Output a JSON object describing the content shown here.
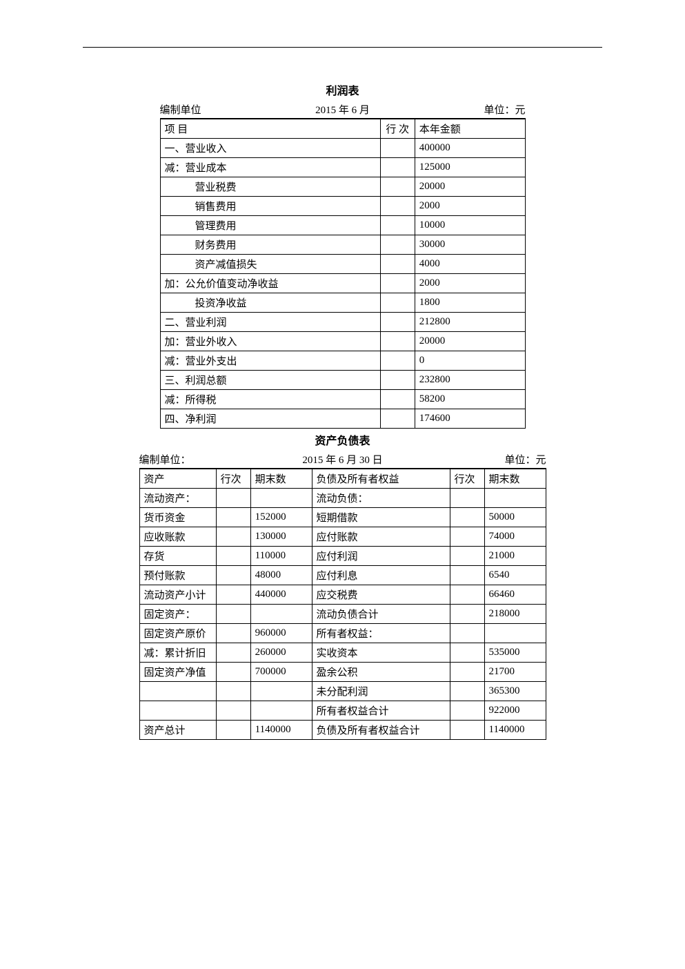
{
  "page": {
    "background_color": "#ffffff",
    "text_color": "#000000",
    "border_color": "#000000",
    "font_size": 15,
    "title_font_size": 16
  },
  "income_statement": {
    "title": "利润表",
    "meta": {
      "left": "编制单位",
      "center": "2015 年 6 月",
      "right": "单位：元"
    },
    "columns": [
      "项 目",
      "行 次",
      "本年金额"
    ],
    "rows": [
      {
        "label": "一、营业收入",
        "indent": 0,
        "line": "",
        "amount": "400000"
      },
      {
        "label": "减：营业成本",
        "indent": 0,
        "line": "",
        "amount": "125000"
      },
      {
        "label": "营业税费",
        "indent": 2,
        "line": "",
        "amount": "20000"
      },
      {
        "label": "销售费用",
        "indent": 2,
        "line": "",
        "amount": "2000"
      },
      {
        "label": "管理费用",
        "indent": 2,
        "line": "",
        "amount": "10000"
      },
      {
        "label": "财务费用",
        "indent": 2,
        "line": "",
        "amount": "30000"
      },
      {
        "label": "资产减值损失",
        "indent": 2,
        "line": "",
        "amount": "4000"
      },
      {
        "label": "加：公允价值变动净收益",
        "indent": 0,
        "line": "",
        "amount": "2000"
      },
      {
        "label": "投资净收益",
        "indent": 2,
        "line": "",
        "amount": "1800"
      },
      {
        "label": "二、营业利润",
        "indent": 0,
        "line": "",
        "amount": "212800"
      },
      {
        "label": "加：营业外收入",
        "indent": 0,
        "line": "",
        "amount": "20000"
      },
      {
        "label": "减：营业外支出",
        "indent": 0,
        "line": "",
        "amount": "0"
      },
      {
        "label": "三、利润总额",
        "indent": 0,
        "line": "",
        "amount": "232800"
      },
      {
        "label": "减：所得税",
        "indent": 0,
        "line": "",
        "amount": "58200"
      },
      {
        "label": "四、净利润",
        "indent": 0,
        "line": "",
        "amount": "174600"
      }
    ]
  },
  "balance_sheet": {
    "title": "资产负债表",
    "meta": {
      "left": "编制单位：",
      "center": "2015 年 6 月 30 日",
      "right": "单位：元"
    },
    "columns": [
      "资产",
      "行次",
      "期末数",
      "负债及所有者权益",
      "行次",
      "期末数"
    ],
    "rows": [
      {
        "asset": "流动资产：",
        "aline": "",
        "aend": "",
        "liab": "流动负债：",
        "lline": "",
        "lend": ""
      },
      {
        "asset": "货币资金",
        "aline": "",
        "aend": "152000",
        "liab": "短期借款",
        "lline": "",
        "lend": "50000"
      },
      {
        "asset": "应收账款",
        "aline": "",
        "aend": "130000",
        "liab": "应付账款",
        "lline": "",
        "lend": "74000"
      },
      {
        "asset": "存货",
        "aline": "",
        "aend": "110000",
        "liab": "应付利润",
        "lline": "",
        "lend": "21000"
      },
      {
        "asset": "预付账款",
        "aline": "",
        "aend": "48000",
        "liab": "应付利息",
        "lline": "",
        "lend": "6540"
      },
      {
        "asset": "流动资产小计",
        "aline": "",
        "aend": "440000",
        "liab": "应交税费",
        "lline": "",
        "lend": "66460"
      },
      {
        "asset": "固定资产：",
        "aline": "",
        "aend": "",
        "liab": "流动负债合计",
        "lline": "",
        "lend": "218000"
      },
      {
        "asset": "固定资产原价",
        "aline": "",
        "aend": "960000",
        "liab": "所有者权益：",
        "lline": "",
        "lend": ""
      },
      {
        "asset": "减：累计折旧",
        "aline": "",
        "aend": "260000",
        "liab": "实收资本",
        "lline": "",
        "lend": "535000"
      },
      {
        "asset": "固定资产净值",
        "aline": "",
        "aend": "700000",
        "liab": "盈余公积",
        "lline": "",
        "lend": "21700"
      },
      {
        "asset": "",
        "aline": "",
        "aend": "",
        "liab": "未分配利润",
        "lline": "",
        "lend": "365300"
      },
      {
        "asset": "",
        "aline": "",
        "aend": "",
        "liab": "所有者权益合计",
        "lline": "",
        "lend": "922000"
      },
      {
        "asset": "资产总计",
        "aline": "",
        "aend": "1140000",
        "liab": "负债及所有者权益合计",
        "lline": "",
        "lend": "1140000"
      }
    ]
  }
}
